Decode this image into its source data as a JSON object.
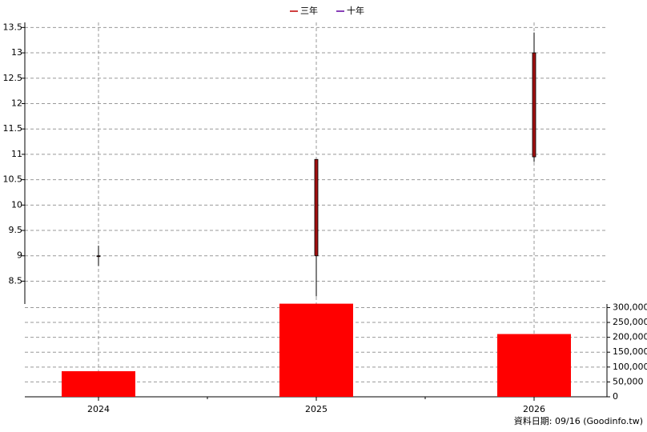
{
  "chart_data": {
    "type": "candlestick",
    "legend": [
      {
        "name": "三年",
        "color": "#c00000"
      },
      {
        "name": "十年",
        "color": "#6000a0"
      }
    ],
    "categories": [
      "2024",
      "2025",
      "2026"
    ],
    "open": [
      9,
      9,
      10.95
    ],
    "close": [
      9,
      10.9,
      13
    ],
    "high": [
      9.2,
      10.9,
      13.4
    ],
    "low": [
      8.8,
      8.2,
      10.85
    ],
    "color": "#a01010",
    "ylim": [
      8.05,
      13.6
    ],
    "yticks": [
      8.5,
      9,
      9.5,
      10,
      10.5,
      11,
      11.5,
      12,
      12.5,
      13,
      13.5
    ],
    "grid": true,
    "volume": {
      "values": [
        86000,
        313000,
        211000
      ],
      "color": "#ff0000",
      "ylim": [
        0,
        320000
      ],
      "yticks": [
        0,
        {
          "value": 50000,
          "label": "50,000"
        },
        {
          "value": 100000,
          "label": "100,000"
        },
        {
          "value": 150000,
          "label": "150,000"
        },
        {
          "value": 200000,
          "label": "200,000"
        },
        {
          "value": 250000,
          "label": "250,000"
        },
        {
          "value": 300000,
          "label": "300,000"
        }
      ]
    },
    "footer": "資料日期: 09/16  (Goodinfo.tw)"
  }
}
